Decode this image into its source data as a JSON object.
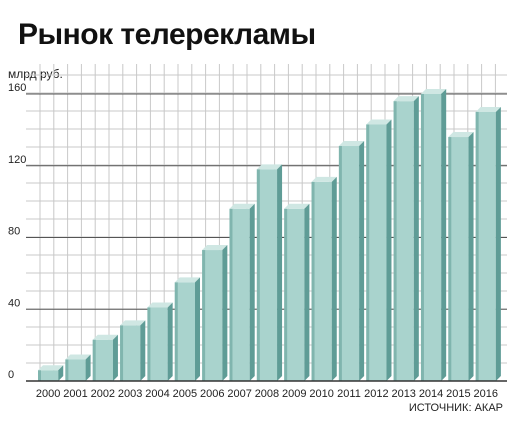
{
  "title": "Рынок телерекламы",
  "unit_label": "млрд руб.",
  "source_label": "ИСТОЧНИК: АКАР",
  "colors": {
    "bar_front": "#a9d3cd",
    "bar_side": "#5f9c96",
    "bar_top": "#cfe7e3",
    "grid": "#c8c8c8",
    "axis": "#333333"
  },
  "chart_data": {
    "type": "bar",
    "title": "Рынок телерекламы",
    "ylabel": "млрд руб.",
    "xlabel": "",
    "categories": [
      "2000",
      "2001",
      "2002",
      "2003",
      "2004",
      "2005",
      "2006",
      "2007",
      "2008",
      "2009",
      "2010",
      "2011",
      "2012",
      "2013",
      "2014",
      "2015",
      "2016"
    ],
    "values": [
      6,
      12,
      23,
      31,
      41,
      55,
      73,
      96,
      118,
      96,
      111,
      131,
      143,
      156,
      160,
      136,
      150
    ],
    "ylim": [
      0,
      160
    ],
    "yticks": [
      0,
      40,
      80,
      120,
      160
    ],
    "grid": true
  }
}
